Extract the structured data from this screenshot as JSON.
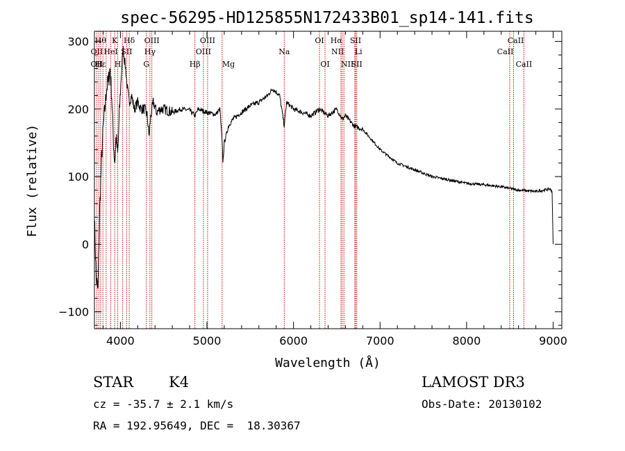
{
  "chart_data": {
    "type": "line",
    "title": "spec-56295-HD125855N172433B01_sp14-141.fits",
    "xlabel": "Wavelength (Å)",
    "ylabel": "Flux (relative)",
    "xlim": [
      3700,
      9100
    ],
    "ylim": [
      -125,
      315
    ],
    "xticks": [
      4000,
      5000,
      6000,
      7000,
      8000,
      9000
    ],
    "yticks": [
      -100,
      0,
      100,
      200,
      300
    ],
    "grid": false,
    "series": [
      {
        "name": "flux",
        "x": [
          3700,
          3720,
          3740,
          3760,
          3780,
          3800,
          3820,
          3840,
          3860,
          3880,
          3900,
          3920,
          3935,
          3950,
          3969,
          3990,
          4010,
          4030,
          4060,
          4080,
          4101,
          4130,
          4160,
          4200,
          4240,
          4280,
          4310,
          4330,
          4350,
          4380,
          4420,
          4460,
          4500,
          4600,
          4700,
          4800,
          4861,
          4900,
          5000,
          5100,
          5150,
          5175,
          5185,
          5200,
          5250,
          5300,
          5400,
          5500,
          5600,
          5700,
          5760,
          5800,
          5840,
          5893,
          5920,
          6000,
          6100,
          6200,
          6300,
          6400,
          6500,
          6563,
          6600,
          6700,
          6800,
          7000,
          7200,
          7400,
          7600,
          7800,
          8000,
          8200,
          8400,
          8600,
          8800,
          8900,
          8960,
          8990,
          9000
        ],
        "y": [
          40,
          -50,
          -70,
          50,
          120,
          170,
          200,
          230,
          240,
          260,
          220,
          150,
          120,
          160,
          130,
          200,
          250,
          290,
          260,
          230,
          210,
          220,
          200,
          210,
          200,
          200,
          190,
          160,
          190,
          210,
          195,
          200,
          200,
          195,
          200,
          198,
          190,
          200,
          195,
          192,
          200,
          150,
          120,
          150,
          175,
          185,
          195,
          205,
          210,
          220,
          230,
          225,
          220,
          175,
          210,
          200,
          195,
          190,
          200,
          190,
          200,
          185,
          190,
          175,
          170,
          140,
          120,
          110,
          100,
          95,
          90,
          88,
          85,
          80,
          78,
          80,
          82,
          78,
          0
        ]
      }
    ],
    "lines": {
      "positions": [
        3727,
        3750,
        3771,
        3798,
        3835,
        3889,
        3934,
        3969,
        4026,
        4072,
        4102,
        4300,
        4341,
        4363,
        4861,
        4959,
        5007,
        5175,
        5893,
        6300,
        6364,
        6548,
        6563,
        6583,
        6708,
        6717,
        6731,
        8498,
        8542,
        8662
      ],
      "labels": [
        {
          "text": "Hθ",
          "wl": 3771,
          "row": 0,
          "a": "c"
        },
        {
          "text": "K",
          "wl": 3934,
          "row": 0,
          "a": "c"
        },
        {
          "text": "Hδ",
          "wl": 4102,
          "row": 0,
          "a": "c"
        },
        {
          "text": "OIII",
          "wl": 4363,
          "row": 0,
          "a": "c"
        },
        {
          "text": "OIII",
          "wl": 5007,
          "row": 0,
          "a": "c"
        },
        {
          "text": "OI",
          "wl": 6300,
          "row": 0,
          "a": "c"
        },
        {
          "text": "Hα",
          "wl": 6563,
          "row": 0,
          "a": "r"
        },
        {
          "text": "SII",
          "wl": 6717,
          "row": 0,
          "a": "c"
        },
        {
          "text": "CaII",
          "wl": 8662,
          "row": 0,
          "a": "r"
        },
        {
          "text": "OII",
          "wl": 3727,
          "row": 1,
          "a": "c"
        },
        {
          "text": "HeI",
          "wl": 3889,
          "row": 1,
          "a": "c"
        },
        {
          "text": "SII",
          "wl": 4072,
          "row": 1,
          "a": "c"
        },
        {
          "text": "Hγ",
          "wl": 4341,
          "row": 1,
          "a": "c"
        },
        {
          "text": "OIII",
          "wl": 4959,
          "row": 1,
          "a": "c"
        },
        {
          "text": "Na",
          "wl": 5893,
          "row": 1,
          "a": "c"
        },
        {
          "text": "NII",
          "wl": 6583,
          "row": 1,
          "a": "r"
        },
        {
          "text": "Li",
          "wl": 6708,
          "row": 1,
          "a": "l"
        },
        {
          "text": "CaII",
          "wl": 8542,
          "row": 1,
          "a": "r"
        },
        {
          "text": "OII",
          "wl": 3727,
          "row": 2,
          "a": "c"
        },
        {
          "text": "Hε",
          "wl": 3771,
          "row": 2,
          "a": "c"
        },
        {
          "text": "H",
          "wl": 3969,
          "row": 2,
          "a": "c"
        },
        {
          "text": "G",
          "wl": 4300,
          "row": 2,
          "a": "c"
        },
        {
          "text": "Hβ",
          "wl": 4861,
          "row": 2,
          "a": "c"
        },
        {
          "text": "Mg",
          "wl": 5175,
          "row": 2,
          "a": "l"
        },
        {
          "text": "OI",
          "wl": 6364,
          "row": 2,
          "a": "c"
        },
        {
          "text": "NII",
          "wl": 6548,
          "row": 2,
          "a": "l"
        },
        {
          "text": "SII",
          "wl": 6731,
          "row": 2,
          "a": "c"
        },
        {
          "text": "CaII",
          "wl": 8662,
          "row": 2,
          "a": "c"
        }
      ]
    }
  },
  "info": {
    "object_class": "STAR",
    "subclass": "K4",
    "redshift": "cz = -35.7 ± 2.1 km/s",
    "coords": "RA = 192.95649, DEC =  18.30367",
    "survey": "LAMOST DR3",
    "obs_date": "Obs-Date: 20130102"
  },
  "colors": {
    "line_marker": "#cc0000",
    "spectrum": "#000000",
    "axis": "#000000"
  }
}
